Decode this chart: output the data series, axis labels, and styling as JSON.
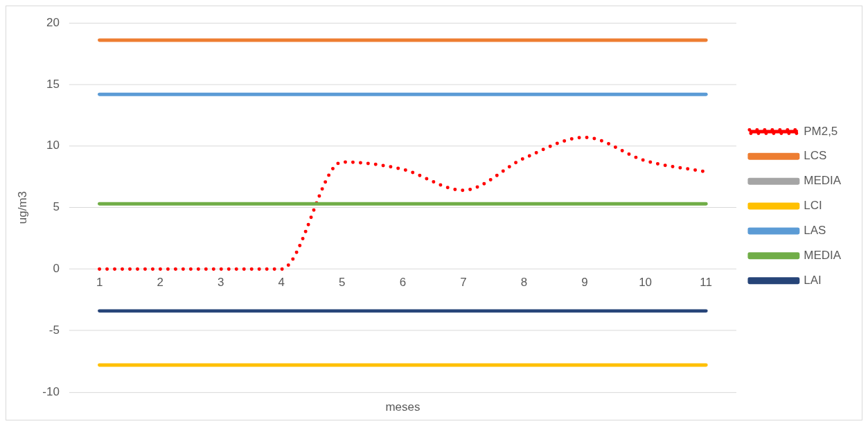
{
  "chart_data": {
    "type": "line",
    "xlabel": "meses",
    "ylabel": "ug/m3",
    "categories": [
      "1",
      "2",
      "3",
      "4",
      "5",
      "6",
      "7",
      "8",
      "9",
      "10",
      "11"
    ],
    "ylim": [
      -10,
      20
    ],
    "yticks": [
      -10,
      -5,
      0,
      5,
      10,
      15,
      20
    ],
    "grid": "y",
    "legend": "right",
    "series": [
      {
        "name": "PM2,5",
        "color": "#ff0000",
        "line_style": "dotted",
        "values": [
          0,
          0,
          0,
          0,
          8.7,
          8.1,
          6.4,
          9.0,
          10.7,
          8.8,
          7.9
        ]
      },
      {
        "name": "LCS",
        "color": "#ed7d31",
        "values": [
          18.6,
          18.6,
          18.6,
          18.6,
          18.6,
          18.6,
          18.6,
          18.6,
          18.6,
          18.6,
          18.6
        ]
      },
      {
        "name": "MEDIA",
        "color": "#a5a5a5",
        "values": [
          null,
          null,
          null,
          null,
          null,
          null,
          null,
          null,
          null,
          null,
          null
        ]
      },
      {
        "name": "LCI",
        "color": "#ffc000",
        "values": [
          -7.8,
          -7.8,
          -7.8,
          -7.8,
          -7.8,
          -7.8,
          -7.8,
          -7.8,
          -7.8,
          -7.8,
          -7.8
        ]
      },
      {
        "name": "LAS",
        "color": "#5b9bd5",
        "values": [
          14.2,
          14.2,
          14.2,
          14.2,
          14.2,
          14.2,
          14.2,
          14.2,
          14.2,
          14.2,
          14.2
        ]
      },
      {
        "name": "MEDIA",
        "color": "#70ad47",
        "values": [
          5.3,
          5.3,
          5.3,
          5.3,
          5.3,
          5.3,
          5.3,
          5.3,
          5.3,
          5.3,
          5.3
        ]
      },
      {
        "name": "LAI",
        "color": "#264478",
        "values": [
          -3.4,
          -3.4,
          -3.4,
          -3.4,
          -3.4,
          -3.4,
          -3.4,
          -3.4,
          -3.4,
          -3.4,
          -3.4
        ]
      }
    ]
  }
}
